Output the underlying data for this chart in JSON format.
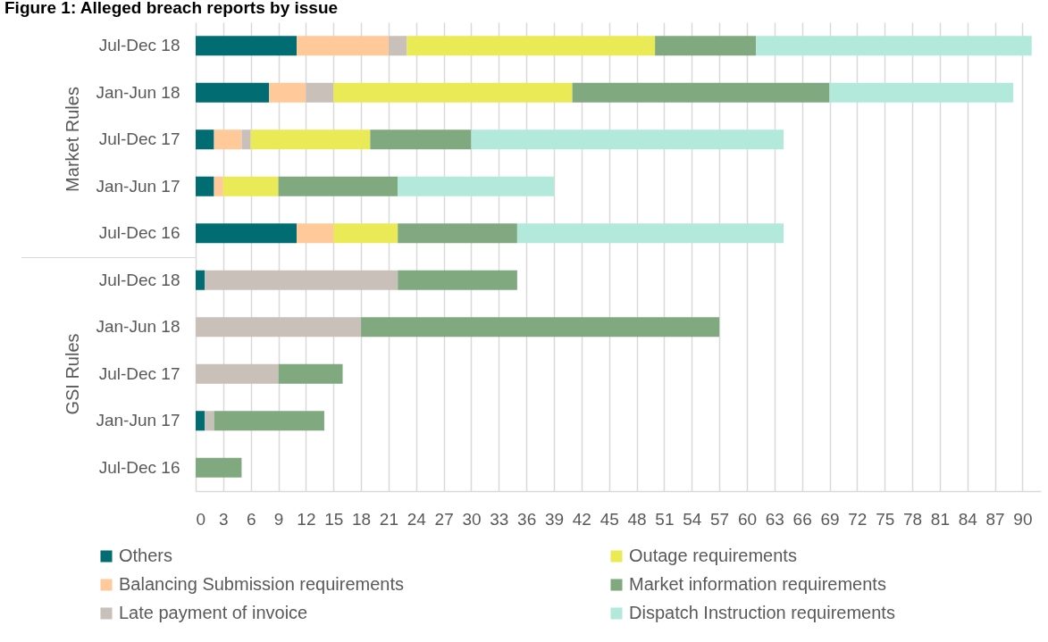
{
  "chart_data": {
    "type": "bar",
    "orientation": "horizontal",
    "stacked": true,
    "title": "Figure 1: Alleged breach reports by issue",
    "categories": [
      "Jul-Dec 18",
      "Jan-Jun 18",
      "Jul-Dec 17",
      "Jan-Jun 17",
      "Jul-Dec 16",
      "Jul-Dec 18",
      "Jan-Jun 18",
      "Jul-Dec 17",
      "Jan-Jun 17",
      "Jul-Dec 16"
    ],
    "series": [
      {
        "name": "Others",
        "color": "#016c72",
        "values": [
          11,
          8,
          2,
          2,
          11,
          1,
          0,
          0,
          1,
          0
        ]
      },
      {
        "name": "Balancing Submission requirements",
        "color": "#ffc999",
        "values": [
          10,
          4,
          3,
          1,
          4,
          0,
          0,
          0,
          0,
          0
        ]
      },
      {
        "name": "Late payment of invoice",
        "color": "#c9c0b9",
        "values": [
          2,
          3,
          1,
          0,
          0,
          21,
          18,
          9,
          1,
          0
        ]
      },
      {
        "name": "Outage requirements",
        "color": "#e9ea55",
        "values": [
          27,
          26,
          13,
          6,
          7,
          0,
          0,
          0,
          0,
          0
        ]
      },
      {
        "name": "Market information requirements",
        "color": "#80a980",
        "values": [
          11,
          28,
          11,
          13,
          13,
          13,
          39,
          7,
          12,
          5
        ]
      },
      {
        "name": "Dispatch Instruction requirements",
        "color": "#b2e9db",
        "values": [
          30,
          20,
          34,
          17,
          29,
          0,
          0,
          0,
          0,
          0
        ]
      }
    ],
    "annotations": [
      "Market Rules",
      "GSI Rules"
    ],
    "xlim": [
      0,
      92
    ],
    "xticks": [
      0,
      3,
      6,
      9,
      12,
      15,
      18,
      21,
      24,
      27,
      30,
      33,
      36,
      39,
      42,
      45,
      48,
      51,
      54,
      57,
      60,
      63,
      66,
      69,
      72,
      75,
      78,
      81,
      84,
      87,
      90
    ],
    "grid": "x",
    "legend": "bottom"
  }
}
